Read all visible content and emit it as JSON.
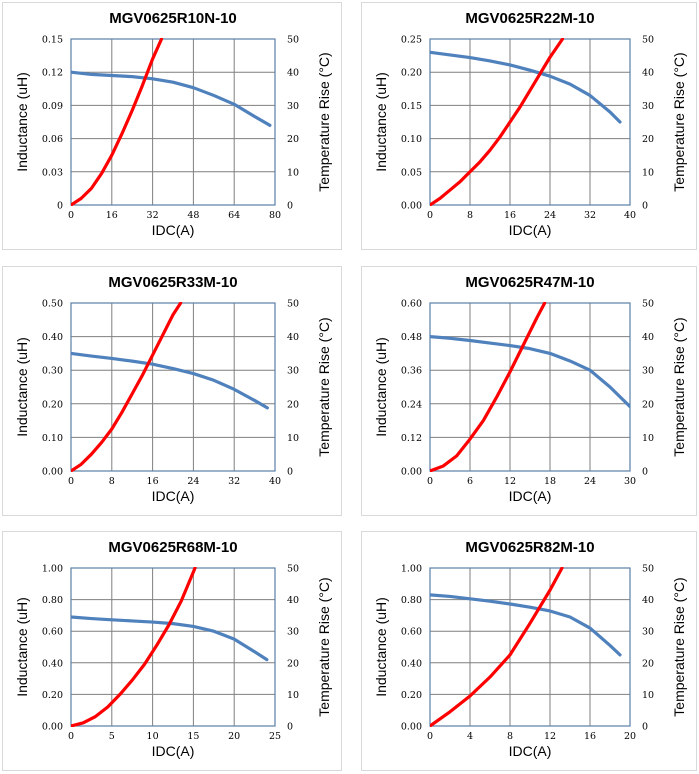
{
  "chart_data": [
    {
      "type": "line",
      "title": "MGV0625R10N-10",
      "xlabel": "IDC(A)",
      "ylabel": "Inductance (uH)",
      "y2label": "Temperature Rise (°C)",
      "xlim": [
        0,
        80
      ],
      "ylim": [
        0,
        0.15
      ],
      "y2lim": [
        0,
        50
      ],
      "xticks": [
        "0",
        "16",
        "32",
        "48",
        "64",
        "80"
      ],
      "yticks": [
        "0",
        "0.03",
        "0.06",
        "0.09",
        "0.12",
        "0.15"
      ],
      "y2ticks": [
        "0",
        "10",
        "20",
        "30",
        "40",
        "50"
      ],
      "series": [
        {
          "name": "Inductance",
          "axis": "left",
          "color": "#4f81bd",
          "x": [
            0,
            8,
            16,
            24,
            32,
            40,
            48,
            56,
            64,
            72,
            78
          ],
          "y": [
            0.12,
            0.118,
            0.117,
            0.116,
            0.114,
            0.111,
            0.106,
            0.099,
            0.091,
            0.08,
            0.072
          ]
        },
        {
          "name": "Temperature Rise",
          "axis": "right",
          "color": "#ff0000",
          "x": [
            0,
            4,
            8,
            12,
            16,
            20,
            24,
            28,
            32,
            35.5
          ],
          "y": [
            0,
            2,
            5,
            9.5,
            15,
            21.5,
            28.5,
            36,
            44,
            50
          ]
        }
      ]
    },
    {
      "type": "line",
      "title": "MGV0625R22M-10",
      "xlabel": "IDC(A)",
      "ylabel": "Inductance (uH)",
      "y2label": "Temperature Rise (°C)",
      "xlim": [
        0,
        40
      ],
      "ylim": [
        0,
        0.25
      ],
      "y2lim": [
        0,
        50
      ],
      "xticks": [
        "0",
        "8",
        "16",
        "24",
        "32",
        "40"
      ],
      "yticks": [
        "0.00",
        "0.05",
        "0.10",
        "0.15",
        "0.20",
        "0.25"
      ],
      "y2ticks": [
        "0",
        "10",
        "20",
        "30",
        "40",
        "50"
      ],
      "series": [
        {
          "name": "Inductance",
          "axis": "left",
          "color": "#4f81bd",
          "x": [
            0,
            4,
            8,
            12,
            16,
            20,
            24,
            28,
            32,
            36,
            38
          ],
          "y": [
            0.23,
            0.226,
            0.222,
            0.217,
            0.211,
            0.203,
            0.194,
            0.182,
            0.165,
            0.14,
            0.125
          ]
        },
        {
          "name": "Temperature Rise",
          "axis": "right",
          "color": "#ff0000",
          "x": [
            0,
            2,
            4,
            6,
            8,
            10,
            12,
            14,
            16,
            18,
            20,
            22,
            24,
            26.5
          ],
          "y": [
            0,
            2,
            4.5,
            7,
            10,
            13,
            16.5,
            20.5,
            25,
            29.5,
            34.5,
            39.5,
            44.5,
            50
          ]
        }
      ]
    },
    {
      "type": "line",
      "title": "MGV0625R33M-10",
      "xlabel": "IDC(A)",
      "ylabel": "Inductance (uH)",
      "y2label": "Temperature Rise (°C)",
      "xlim": [
        0,
        40
      ],
      "ylim": [
        0,
        0.5
      ],
      "y2lim": [
        0,
        50
      ],
      "xticks": [
        "0",
        "8",
        "16",
        "24",
        "32",
        "40"
      ],
      "yticks": [
        "0.00",
        "0.10",
        "0.20",
        "0.30",
        "0.40",
        "0.50"
      ],
      "y2ticks": [
        "0",
        "10",
        "20",
        "30",
        "40",
        "50"
      ],
      "series": [
        {
          "name": "Inductance",
          "axis": "left",
          "color": "#4f81bd",
          "x": [
            0,
            4,
            8,
            12,
            16,
            20,
            24,
            28,
            32,
            36,
            38.5
          ],
          "y": [
            0.35,
            0.342,
            0.335,
            0.327,
            0.318,
            0.305,
            0.29,
            0.27,
            0.243,
            0.21,
            0.188
          ]
        },
        {
          "name": "Temperature Rise",
          "axis": "right",
          "color": "#ff0000",
          "x": [
            0,
            2,
            4,
            6,
            8,
            10,
            12,
            14,
            16,
            18,
            20,
            21.5
          ],
          "y": [
            0,
            2,
            5,
            8.5,
            12.5,
            17.5,
            23,
            28.5,
            34.5,
            40.5,
            46.5,
            50
          ]
        }
      ]
    },
    {
      "type": "line",
      "title": "MGV0625R47M-10",
      "xlabel": "IDC(A)",
      "ylabel": "Inductance (uH)",
      "y2label": "Temperature Rise (°C)",
      "xlim": [
        0,
        30
      ],
      "ylim": [
        0,
        0.6
      ],
      "y2lim": [
        0,
        50
      ],
      "xticks": [
        "0",
        "6",
        "12",
        "18",
        "24",
        "30"
      ],
      "yticks": [
        "0.00",
        "0.12",
        "0.24",
        "0.36",
        "0.48",
        "0.60"
      ],
      "y2ticks": [
        "0",
        "10",
        "20",
        "30",
        "40",
        "50"
      ],
      "series": [
        {
          "name": "Inductance",
          "axis": "left",
          "color": "#4f81bd",
          "x": [
            0,
            3,
            6,
            9,
            12,
            15,
            18,
            21,
            24,
            27,
            30
          ],
          "y": [
            0.48,
            0.474,
            0.466,
            0.457,
            0.448,
            0.437,
            0.42,
            0.393,
            0.36,
            0.3,
            0.23
          ]
        },
        {
          "name": "Temperature Rise",
          "axis": "right",
          "color": "#ff0000",
          "x": [
            0,
            2,
            4,
            6,
            8,
            10,
            12,
            14,
            16,
            17.2
          ],
          "y": [
            0,
            1.5,
            4.5,
            9.5,
            15,
            22,
            29.5,
            37.5,
            45.5,
            50
          ]
        }
      ]
    },
    {
      "type": "line",
      "title": "MGV0625R68M-10",
      "xlabel": "IDC(A)",
      "ylabel": "Inductance (uH)",
      "y2label": "Temperature Rise (°C)",
      "xlim": [
        0,
        25
      ],
      "ylim": [
        0,
        1.0
      ],
      "y2lim": [
        0,
        50
      ],
      "xticks": [
        "0",
        "5",
        "10",
        "15",
        "20",
        "25"
      ],
      "yticks": [
        "0.00",
        "0.20",
        "0.40",
        "0.60",
        "0.80",
        "1.00"
      ],
      "y2ticks": [
        "0",
        "10",
        "20",
        "30",
        "40",
        "50"
      ],
      "series": [
        {
          "name": "Inductance",
          "axis": "left",
          "color": "#4f81bd",
          "x": [
            0,
            2.5,
            5,
            7.5,
            10,
            12.5,
            15,
            17.5,
            20,
            22.5,
            24
          ],
          "y": [
            0.69,
            0.68,
            0.672,
            0.665,
            0.658,
            0.648,
            0.63,
            0.6,
            0.55,
            0.47,
            0.42
          ]
        },
        {
          "name": "Temperature Rise",
          "axis": "right",
          "color": "#ff0000",
          "x": [
            0,
            1.5,
            3,
            4.5,
            6,
            7.5,
            9,
            10.5,
            12,
            13.5,
            15.2
          ],
          "y": [
            0,
            1,
            3,
            6,
            10,
            14.5,
            19.5,
            25.5,
            32,
            39.5,
            50
          ]
        }
      ]
    },
    {
      "type": "line",
      "title": "MGV0625R82M-10",
      "xlabel": "IDC(A)",
      "ylabel": "Inductance (uH)",
      "y2label": "Temperature Rise (°C)",
      "xlim": [
        0,
        20
      ],
      "ylim": [
        0,
        1.0
      ],
      "y2lim": [
        0,
        50
      ],
      "xticks": [
        "0",
        "4",
        "8",
        "12",
        "16",
        "20"
      ],
      "yticks": [
        "0.00",
        "0.20",
        "0.40",
        "0.60",
        "0.80",
        "1.00"
      ],
      "y2ticks": [
        "0",
        "10",
        "20",
        "30",
        "40",
        "50"
      ],
      "series": [
        {
          "name": "Inductance",
          "axis": "left",
          "color": "#4f81bd",
          "x": [
            0,
            2,
            4,
            6,
            8,
            10,
            12,
            14,
            16,
            18,
            19
          ],
          "y": [
            0.83,
            0.82,
            0.805,
            0.79,
            0.772,
            0.752,
            0.728,
            0.69,
            0.62,
            0.51,
            0.45
          ]
        },
        {
          "name": "Temperature Rise",
          "axis": "right",
          "color": "#ff0000",
          "x": [
            0,
            2,
            4,
            6,
            8,
            10,
            12,
            13.2
          ],
          "y": [
            0,
            4.5,
            9.5,
            15.5,
            22.5,
            32.5,
            43,
            50
          ]
        }
      ]
    }
  ]
}
